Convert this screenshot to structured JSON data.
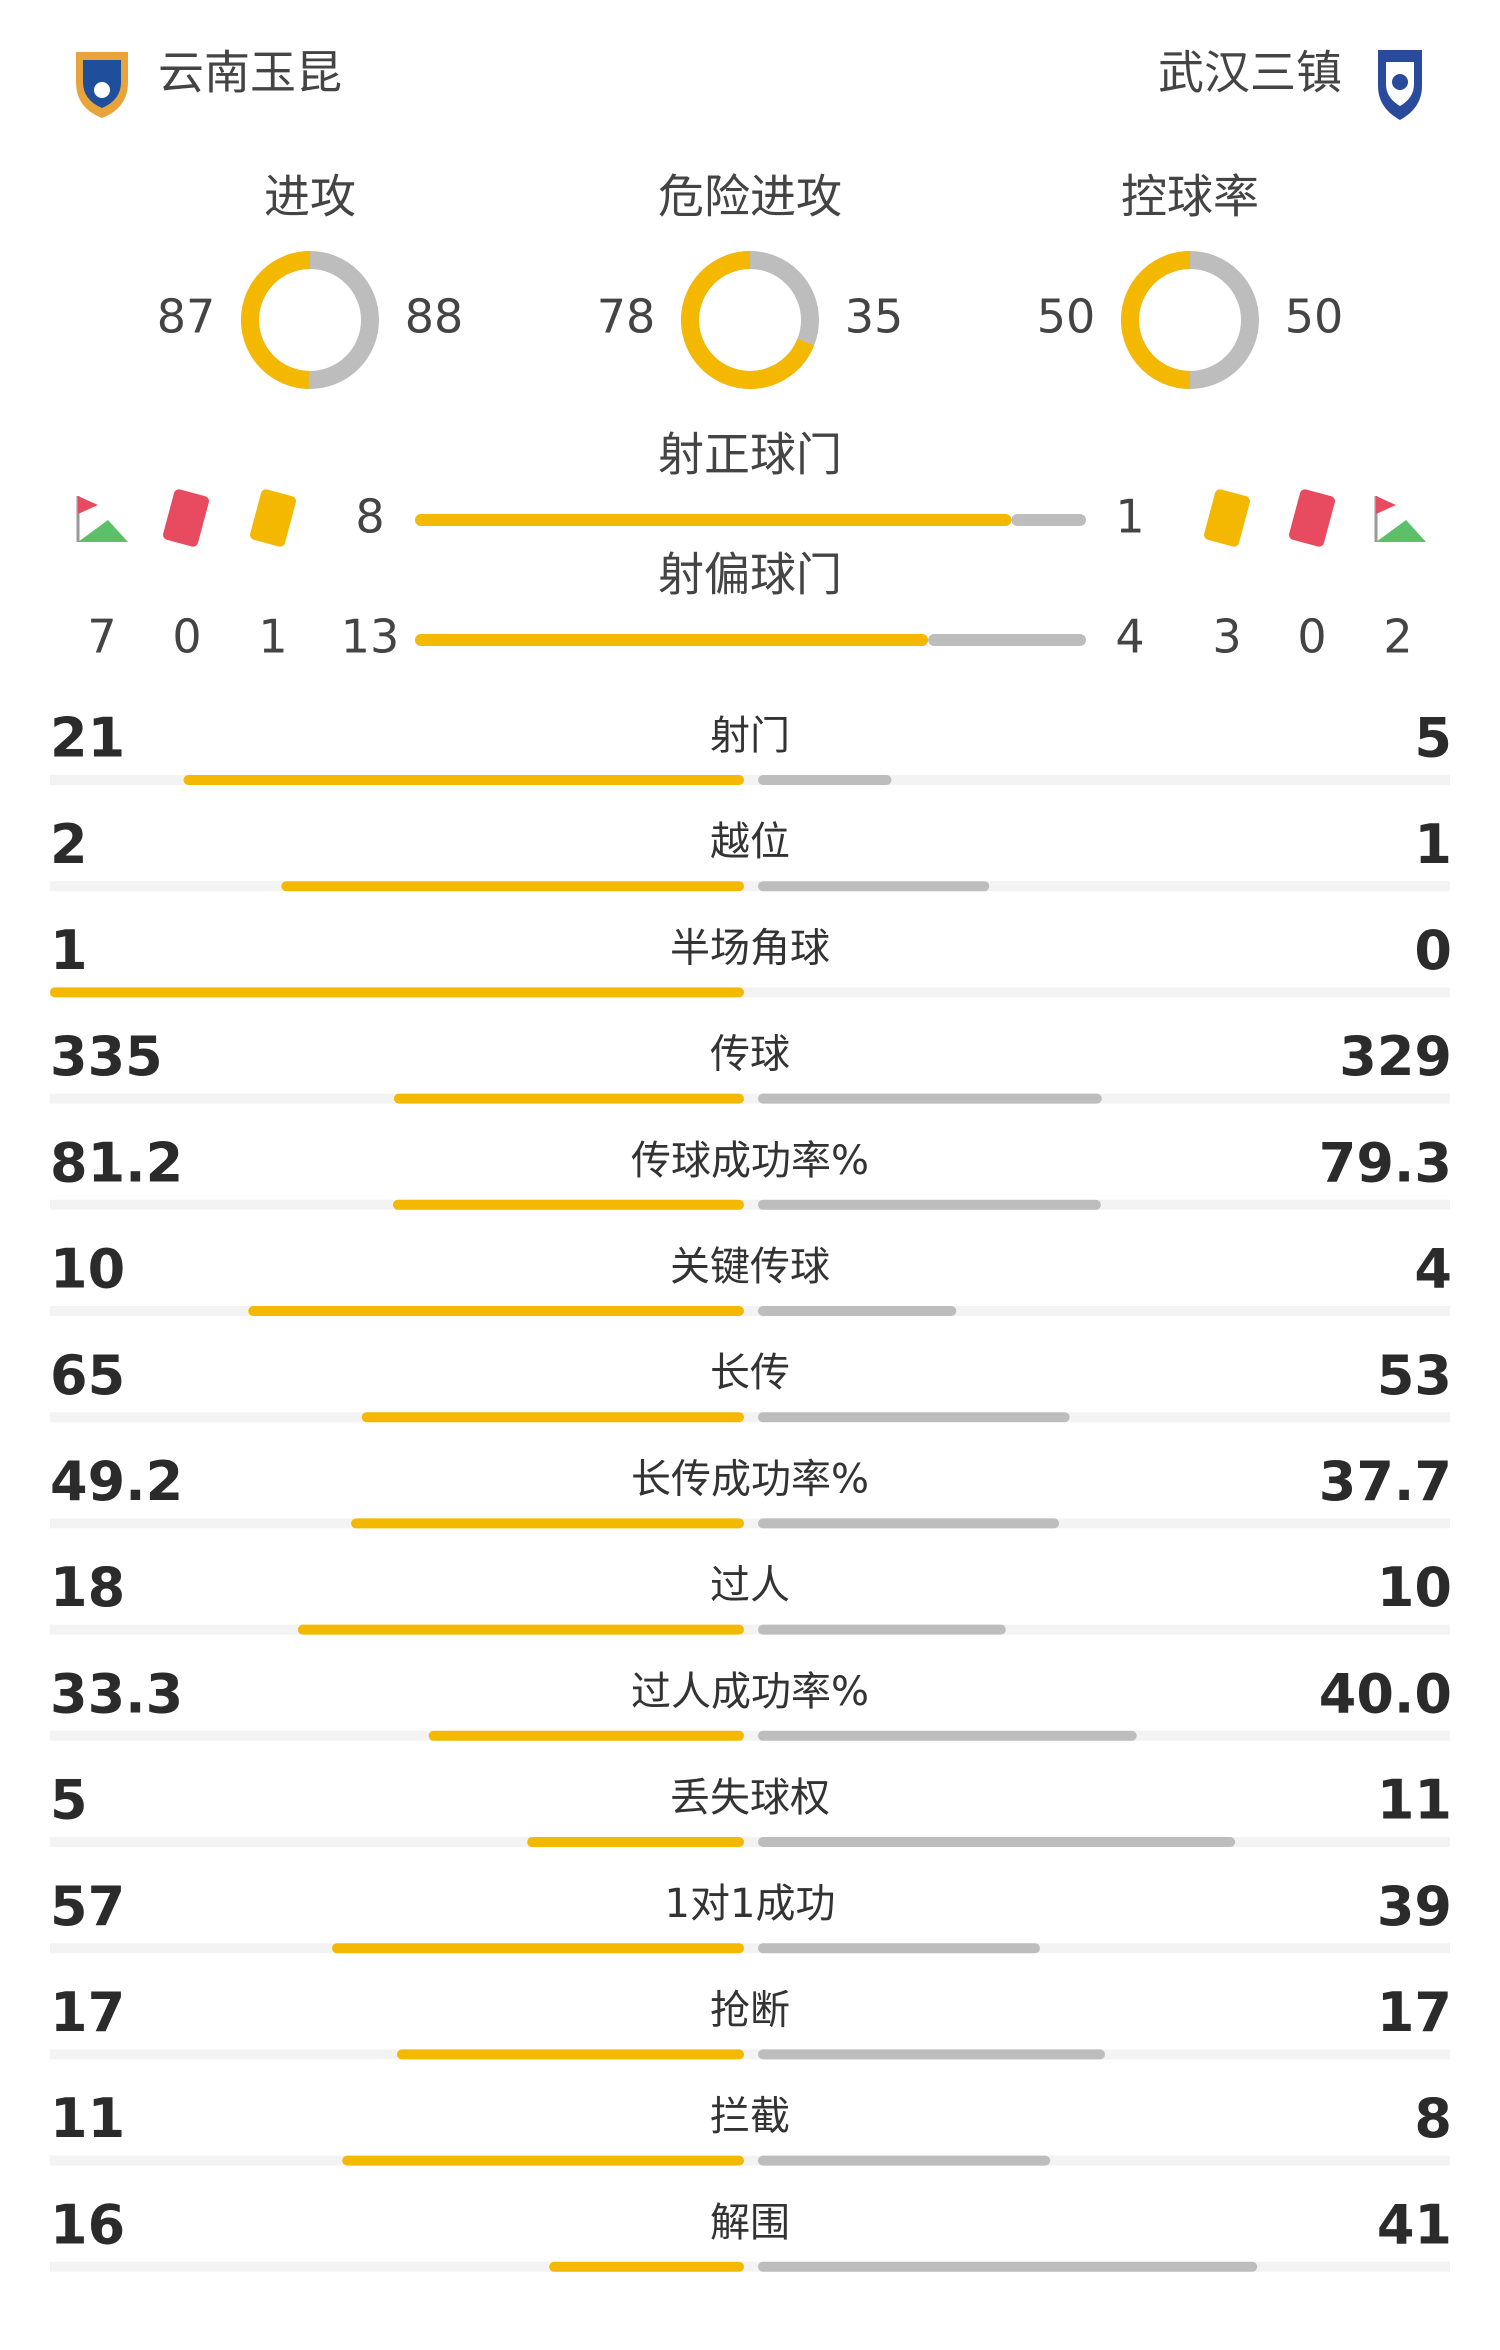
{
  "teams": {
    "home": "云南玉昆",
    "away": "武汉三镇"
  },
  "rings": [
    {
      "label": "进攻",
      "home": 87,
      "away": 88
    },
    {
      "label": "危险进攻",
      "home": 78,
      "away": 35
    },
    {
      "label": "控球率",
      "home": 50,
      "away": 50
    }
  ],
  "shots": [
    {
      "label": "射正球门",
      "home": 8,
      "away": 1
    },
    {
      "label": "射偏球门",
      "home": 13,
      "away": 4
    }
  ],
  "discipline": {
    "home": {
      "corners": 7,
      "red": 0,
      "yellow": 1
    },
    "away": {
      "yellow": 3,
      "red": 0,
      "corners": 2
    }
  },
  "stats": [
    {
      "label": "射门",
      "home": 21,
      "away": 5
    },
    {
      "label": "越位",
      "home": 2,
      "away": 1
    },
    {
      "label": "半场角球",
      "home": 1,
      "away": 0
    },
    {
      "label": "传球",
      "home": 335,
      "away": 329
    },
    {
      "label": "传球成功率%",
      "home": 81.2,
      "away": 79.3
    },
    {
      "label": "关键传球",
      "home": 10,
      "away": 4
    },
    {
      "label": "长传",
      "home": 65,
      "away": 53
    },
    {
      "label": "长传成功率%",
      "home": 49.2,
      "away": 37.7
    },
    {
      "label": "过人",
      "home": 18,
      "away": 10
    },
    {
      "label": "过人成功率%",
      "home": 33.3,
      "away": 40,
      "away_label": "40.0"
    },
    {
      "label": "丢失球权",
      "home": 5,
      "away": 11
    },
    {
      "label": "1对1成功",
      "home": 57,
      "away": 39
    },
    {
      "label": "抢断",
      "home": 17,
      "away": 17
    },
    {
      "label": "拦截",
      "home": 11,
      "away": 8
    },
    {
      "label": "解围",
      "home": 16,
      "away": 41
    }
  ]
}
